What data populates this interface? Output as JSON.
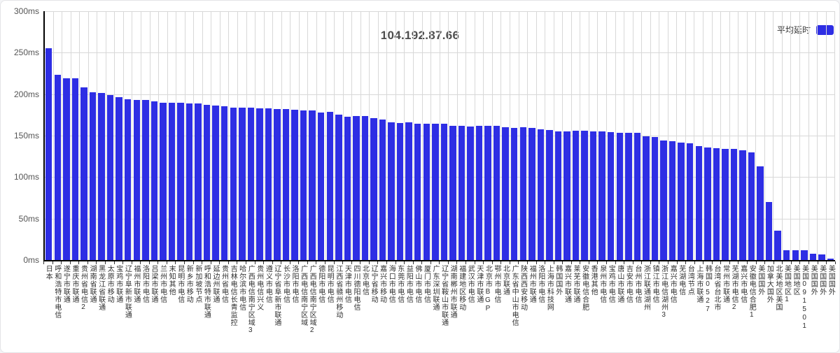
{
  "header": {
    "title": "104.192.87.66"
  },
  "legend": {
    "label": "平均延时",
    "swatch_color": "#2e2ee4"
  },
  "chart_data": {
    "type": "bar",
    "title": "104.192.87.66",
    "series_name": "平均延时",
    "unit": "ms",
    "ylim": [
      0,
      300
    ],
    "y_ticks": [
      "300ms",
      "250ms",
      "200ms",
      "150ms",
      "100ms",
      "50ms",
      "0ms"
    ],
    "grid": true,
    "legend_position": "top-right",
    "bar_color": "#2e2ee4",
    "xlabel": "",
    "ylabel": "",
    "categories": [
      "日本",
      "呼和浩特市电信",
      "遂宁市联通",
      "重庆市联通",
      "贵州省电信2",
      "湖南省联通",
      "黑龙江省联通",
      "太原市移动",
      "宝鸡市联通",
      "辽宁阜新市联通",
      "福州市联通",
      "洛阳市电信",
      "吕梁市联通",
      "兰州市电信",
      "末知其他",
      "昆明市电信",
      "新乡市移动",
      "新加坡节点",
      "呼和浩特市联通",
      "延边州联通",
      "贵州省电信",
      "吉林电信长青监控",
      "哈尔滨市电信",
      "广西电信南宁区域3",
      "贵州电信兴义",
      "遵义市电信",
      "辽宁省阜新市联通",
      "长沙市电信",
      "洛阳市电信",
      "广西电信南宁区域",
      "广西电信南宁区域2",
      "德阳市电信",
      "昆明市电信",
      "江西省赣州移动",
      "天津市电信",
      "四川德阳电信",
      "北京电信",
      "辽宁省移动",
      "嘉兴市移动",
      "海口市电信",
      "东莞市电信",
      "益阳市电信",
      "佛山市电信",
      "厦门市电信",
      "广东深圳联通",
      "辽宁省鞍山市联通",
      "湖南郴州市联通",
      "福建地区移动",
      "武汉市电信",
      "天津市联通",
      "北京市BGP",
      "鄂州市电信",
      "北京联通",
      "广东省中山市电信",
      "陕西西安移动",
      "福州市联通",
      "洛阳市电信",
      "上海市科技网",
      "韩国国外",
      "嘉兴市联通",
      "莱芜市联通",
      "安徽电信合肥",
      "香港其他",
      "泉州市电信",
      "宝鸡市电信",
      "唐山市联通",
      "吉安市电信",
      "台州市电信",
      "浙江联通湖州",
      "镇江市电信",
      "浙江电信湖州3",
      "嘉兴市电信",
      "芜湖电信",
      "台湾节点",
      "上海市联通",
      "韩国0527",
      "台湾省台北市",
      "常州市联通",
      "芜湖市电信2",
      "嘉兴市电信",
      "安徽电信合肥1",
      "美国国外",
      "加拿大国外",
      "北美地区美国",
      "美国地区1",
      "美国地区",
      "美国091501",
      "美国国外",
      "美国国外",
      "美国国外"
    ],
    "values": [
      255,
      223,
      219,
      219,
      208,
      202,
      201,
      199,
      196,
      194,
      193,
      193,
      191,
      190,
      190,
      190,
      189,
      189,
      187,
      186,
      185,
      184,
      184,
      184,
      183,
      183,
      182,
      182,
      181,
      180,
      180,
      178,
      179,
      175,
      173,
      174,
      174,
      171,
      169,
      166,
      165,
      166,
      164,
      164,
      164,
      164,
      162,
      162,
      161,
      162,
      162,
      162,
      160,
      159,
      160,
      159,
      158,
      157,
      155,
      155,
      156,
      156,
      155,
      155,
      154,
      153,
      153,
      153,
      149,
      148,
      144,
      143,
      142,
      141,
      137,
      136,
      135,
      134,
      134,
      132,
      130,
      113,
      70,
      35,
      12,
      12,
      12,
      8,
      7,
      2
    ]
  }
}
